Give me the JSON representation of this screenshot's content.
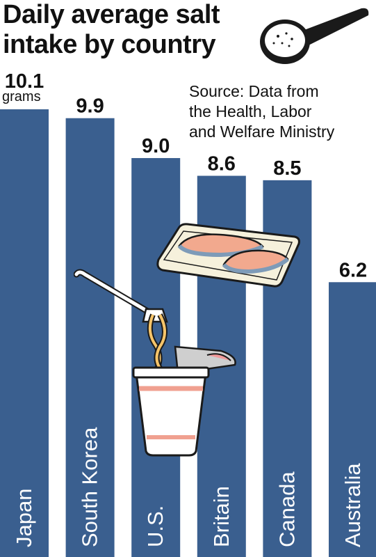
{
  "title_line1": "Daily average salt",
  "title_line2": "intake by country",
  "source_lines": [
    "Source: Data from",
    "the Health, Labor",
    "and Welfare Ministry"
  ],
  "colors": {
    "bar": "#3a5f8f",
    "text": "#111111",
    "bar_label": "#ffffff"
  },
  "icons": [
    "salt-spoon-icon",
    "grilled-salmon-tray-icon",
    "cup-noodle-fork-icon"
  ],
  "chart_data": {
    "type": "bar",
    "categories": [
      "Japan",
      "South Korea",
      "U.S.",
      "Britain",
      "Canada",
      "Australia"
    ],
    "values": [
      10.1,
      9.9,
      9.0,
      8.6,
      8.5,
      6.2
    ],
    "value_labels": [
      "10.1",
      "9.9",
      "9.0",
      "8.6",
      "8.5",
      "6.2"
    ],
    "unit": "grams",
    "title": "Daily average salt intake by country",
    "ylim": [
      0,
      10.1
    ],
    "grid": false,
    "legend": "none"
  }
}
